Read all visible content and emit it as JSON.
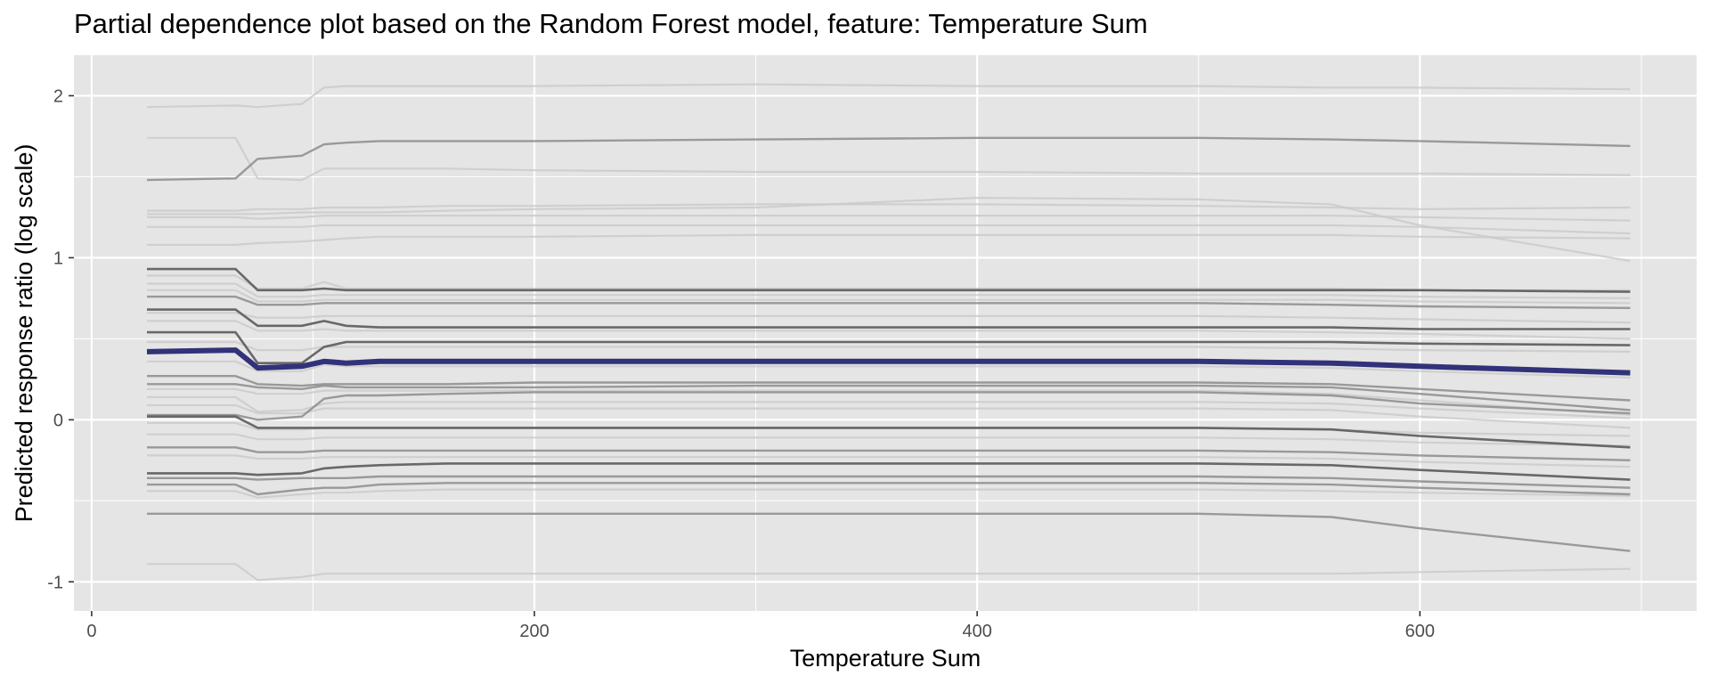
{
  "chart_data": {
    "type": "line",
    "title": "Partial dependence plot based on the Random Forest model, feature: Temperature Sum",
    "xlabel": "Temperature Sum",
    "ylabel": "Predicted response ratio (log scale)",
    "xlim": [
      -8,
      725
    ],
    "ylim": [
      -1.18,
      2.25
    ],
    "x_ticks": [
      0,
      200,
      400,
      600
    ],
    "x_tick_labels": [
      "0",
      "200",
      "400",
      "600"
    ],
    "y_ticks": [
      -1,
      0,
      1,
      2
    ],
    "y_tick_labels": [
      "-1",
      "0",
      "1",
      "2"
    ],
    "grid": true,
    "legend": "none",
    "colors": {
      "panel": "#e5e5e5",
      "grid": "#ffffff",
      "average": "#32327a",
      "dark_lines": "#5a5a5a",
      "mid_lines": "#8c8c8c",
      "light_lines": "#c9c9c9"
    },
    "x": [
      25,
      65,
      75,
      95,
      105,
      115,
      130,
      160,
      200,
      300,
      400,
      500,
      560,
      600,
      695
    ],
    "average_line": {
      "values": [
        0.42,
        0.43,
        0.32,
        0.33,
        0.36,
        0.35,
        0.36,
        0.36,
        0.36,
        0.36,
        0.36,
        0.36,
        0.35,
        0.33,
        0.29
      ]
    },
    "ice_lines": [
      {
        "tone": "light",
        "values": [
          1.93,
          1.94,
          1.93,
          1.95,
          2.05,
          2.06,
          2.06,
          2.06,
          2.06,
          2.07,
          2.06,
          2.06,
          2.05,
          2.05,
          2.04
        ]
      },
      {
        "tone": "light",
        "values": [
          1.74,
          1.74,
          1.49,
          1.48,
          1.55,
          1.55,
          1.55,
          1.55,
          1.54,
          1.53,
          1.53,
          1.52,
          1.52,
          1.52,
          1.51
        ]
      },
      {
        "tone": "mid",
        "values": [
          1.48,
          1.49,
          1.61,
          1.63,
          1.7,
          1.71,
          1.72,
          1.72,
          1.72,
          1.73,
          1.74,
          1.74,
          1.73,
          1.72,
          1.69
        ]
      },
      {
        "tone": "light",
        "values": [
          1.29,
          1.29,
          1.3,
          1.3,
          1.31,
          1.31,
          1.31,
          1.32,
          1.32,
          1.33,
          1.33,
          1.32,
          1.31,
          1.3,
          1.31
        ]
      },
      {
        "tone": "light",
        "values": [
          1.27,
          1.27,
          1.27,
          1.28,
          1.28,
          1.28,
          1.28,
          1.29,
          1.3,
          1.31,
          1.37,
          1.36,
          1.33,
          1.2,
          0.98
        ]
      },
      {
        "tone": "light",
        "values": [
          1.25,
          1.25,
          1.24,
          1.25,
          1.26,
          1.26,
          1.26,
          1.26,
          1.26,
          1.26,
          1.26,
          1.26,
          1.26,
          1.25,
          1.23
        ]
      },
      {
        "tone": "light",
        "values": [
          1.19,
          1.19,
          1.19,
          1.19,
          1.2,
          1.2,
          1.2,
          1.2,
          1.2,
          1.2,
          1.2,
          1.2,
          1.2,
          1.19,
          1.15
        ]
      },
      {
        "tone": "light",
        "values": [
          1.08,
          1.08,
          1.09,
          1.1,
          1.11,
          1.12,
          1.13,
          1.13,
          1.13,
          1.14,
          1.14,
          1.14,
          1.14,
          1.13,
          1.12
        ]
      },
      {
        "tone": "dark",
        "values": [
          0.93,
          0.93,
          0.8,
          0.8,
          0.81,
          0.8,
          0.8,
          0.8,
          0.8,
          0.8,
          0.8,
          0.8,
          0.8,
          0.8,
          0.79
        ]
      },
      {
        "tone": "light",
        "values": [
          0.89,
          0.89,
          0.81,
          0.81,
          0.85,
          0.81,
          0.81,
          0.81,
          0.81,
          0.81,
          0.81,
          0.81,
          0.81,
          0.8,
          0.8
        ]
      },
      {
        "tone": "light",
        "values": [
          0.84,
          0.84,
          0.76,
          0.76,
          0.77,
          0.77,
          0.77,
          0.77,
          0.77,
          0.77,
          0.77,
          0.77,
          0.77,
          0.76,
          0.75
        ]
      },
      {
        "tone": "light",
        "values": [
          0.8,
          0.8,
          0.73,
          0.73,
          0.74,
          0.74,
          0.74,
          0.74,
          0.74,
          0.74,
          0.74,
          0.74,
          0.74,
          0.73,
          0.72
        ]
      },
      {
        "tone": "mid",
        "values": [
          0.76,
          0.76,
          0.71,
          0.71,
          0.72,
          0.72,
          0.72,
          0.72,
          0.72,
          0.72,
          0.72,
          0.72,
          0.71,
          0.7,
          0.69
        ]
      },
      {
        "tone": "dark",
        "values": [
          0.68,
          0.68,
          0.58,
          0.58,
          0.61,
          0.58,
          0.57,
          0.57,
          0.57,
          0.57,
          0.57,
          0.57,
          0.57,
          0.56,
          0.56
        ]
      },
      {
        "tone": "light",
        "values": [
          0.66,
          0.66,
          0.63,
          0.63,
          0.64,
          0.64,
          0.64,
          0.64,
          0.64,
          0.64,
          0.64,
          0.64,
          0.63,
          0.62,
          0.6
        ]
      },
      {
        "tone": "light",
        "values": [
          0.61,
          0.61,
          0.55,
          0.55,
          0.56,
          0.55,
          0.55,
          0.55,
          0.55,
          0.55,
          0.55,
          0.55,
          0.54,
          0.53,
          0.5
        ]
      },
      {
        "tone": "dark",
        "values": [
          0.54,
          0.54,
          0.35,
          0.35,
          0.45,
          0.48,
          0.48,
          0.48,
          0.48,
          0.48,
          0.48,
          0.48,
          0.48,
          0.47,
          0.46
        ]
      },
      {
        "tone": "light",
        "values": [
          0.48,
          0.48,
          0.43,
          0.43,
          0.45,
          0.45,
          0.45,
          0.45,
          0.45,
          0.45,
          0.45,
          0.45,
          0.44,
          0.43,
          0.42
        ]
      },
      {
        "tone": "light",
        "values": [
          0.36,
          0.36,
          0.3,
          0.3,
          0.34,
          0.33,
          0.33,
          0.33,
          0.33,
          0.33,
          0.33,
          0.33,
          0.32,
          0.3,
          0.26
        ]
      },
      {
        "tone": "mid",
        "values": [
          0.27,
          0.27,
          0.22,
          0.21,
          0.22,
          0.22,
          0.22,
          0.22,
          0.23,
          0.23,
          0.23,
          0.23,
          0.22,
          0.19,
          0.12
        ]
      },
      {
        "tone": "mid",
        "values": [
          0.22,
          0.22,
          0.2,
          0.19,
          0.21,
          0.2,
          0.2,
          0.2,
          0.2,
          0.21,
          0.21,
          0.21,
          0.2,
          0.16,
          0.06
        ]
      },
      {
        "tone": "light",
        "values": [
          0.19,
          0.19,
          0.16,
          0.16,
          0.18,
          0.18,
          0.18,
          0.18,
          0.18,
          0.18,
          0.18,
          0.18,
          0.16,
          0.12,
          0.03
        ]
      },
      {
        "tone": "light",
        "values": [
          0.14,
          0.14,
          0.05,
          0.06,
          0.1,
          0.11,
          0.11,
          0.11,
          0.11,
          0.11,
          0.11,
          0.11,
          0.1,
          0.07,
          0.01
        ]
      },
      {
        "tone": "light",
        "values": [
          0.09,
          0.09,
          0.04,
          0.04,
          0.07,
          0.07,
          0.07,
          0.07,
          0.07,
          0.07,
          0.07,
          0.07,
          0.06,
          0.02,
          -0.05
        ]
      },
      {
        "tone": "mid",
        "values": [
          0.03,
          0.03,
          0.0,
          0.02,
          0.13,
          0.15,
          0.15,
          0.16,
          0.17,
          0.17,
          0.17,
          0.17,
          0.15,
          0.1,
          0.04
        ]
      },
      {
        "tone": "dark",
        "values": [
          0.02,
          0.02,
          -0.05,
          -0.05,
          -0.05,
          -0.05,
          -0.05,
          -0.05,
          -0.05,
          -0.05,
          -0.05,
          -0.05,
          -0.06,
          -0.1,
          -0.17
        ]
      },
      {
        "tone": "light",
        "values": [
          -0.02,
          -0.02,
          -0.06,
          -0.06,
          -0.05,
          -0.05,
          -0.05,
          -0.05,
          -0.05,
          -0.05,
          -0.05,
          -0.05,
          -0.06,
          -0.08,
          -0.1
        ]
      },
      {
        "tone": "light",
        "values": [
          -0.09,
          -0.09,
          -0.12,
          -0.12,
          -0.11,
          -0.11,
          -0.11,
          -0.11,
          -0.11,
          -0.11,
          -0.11,
          -0.11,
          -0.12,
          -0.14,
          -0.16
        ]
      },
      {
        "tone": "mid",
        "values": [
          -0.17,
          -0.17,
          -0.2,
          -0.2,
          -0.19,
          -0.19,
          -0.19,
          -0.19,
          -0.19,
          -0.19,
          -0.19,
          -0.19,
          -0.2,
          -0.22,
          -0.25
        ]
      },
      {
        "tone": "light",
        "values": [
          -0.22,
          -0.22,
          -0.24,
          -0.24,
          -0.23,
          -0.23,
          -0.23,
          -0.23,
          -0.23,
          -0.23,
          -0.23,
          -0.23,
          -0.24,
          -0.26,
          -0.29
        ]
      },
      {
        "tone": "dark",
        "values": [
          -0.33,
          -0.33,
          -0.34,
          -0.33,
          -0.3,
          -0.29,
          -0.28,
          -0.27,
          -0.27,
          -0.27,
          -0.27,
          -0.27,
          -0.28,
          -0.31,
          -0.37
        ]
      },
      {
        "tone": "mid",
        "values": [
          -0.36,
          -0.36,
          -0.37,
          -0.36,
          -0.36,
          -0.36,
          -0.35,
          -0.35,
          -0.35,
          -0.35,
          -0.35,
          -0.35,
          -0.36,
          -0.38,
          -0.42
        ]
      },
      {
        "tone": "mid",
        "values": [
          -0.4,
          -0.4,
          -0.46,
          -0.43,
          -0.42,
          -0.42,
          -0.4,
          -0.39,
          -0.39,
          -0.39,
          -0.39,
          -0.39,
          -0.4,
          -0.42,
          -0.46
        ]
      },
      {
        "tone": "light",
        "values": [
          -0.44,
          -0.44,
          -0.48,
          -0.46,
          -0.45,
          -0.45,
          -0.44,
          -0.43,
          -0.43,
          -0.43,
          -0.43,
          -0.43,
          -0.44,
          -0.45,
          -0.47
        ]
      },
      {
        "tone": "mid",
        "values": [
          -0.58,
          -0.58,
          -0.58,
          -0.58,
          -0.58,
          -0.58,
          -0.58,
          -0.58,
          -0.58,
          -0.58,
          -0.58,
          -0.58,
          -0.6,
          -0.67,
          -0.81
        ]
      },
      {
        "tone": "light",
        "values": [
          -0.89,
          -0.89,
          -0.99,
          -0.97,
          -0.95,
          -0.95,
          -0.95,
          -0.95,
          -0.95,
          -0.95,
          -0.95,
          -0.95,
          -0.95,
          -0.94,
          -0.92
        ]
      }
    ]
  }
}
